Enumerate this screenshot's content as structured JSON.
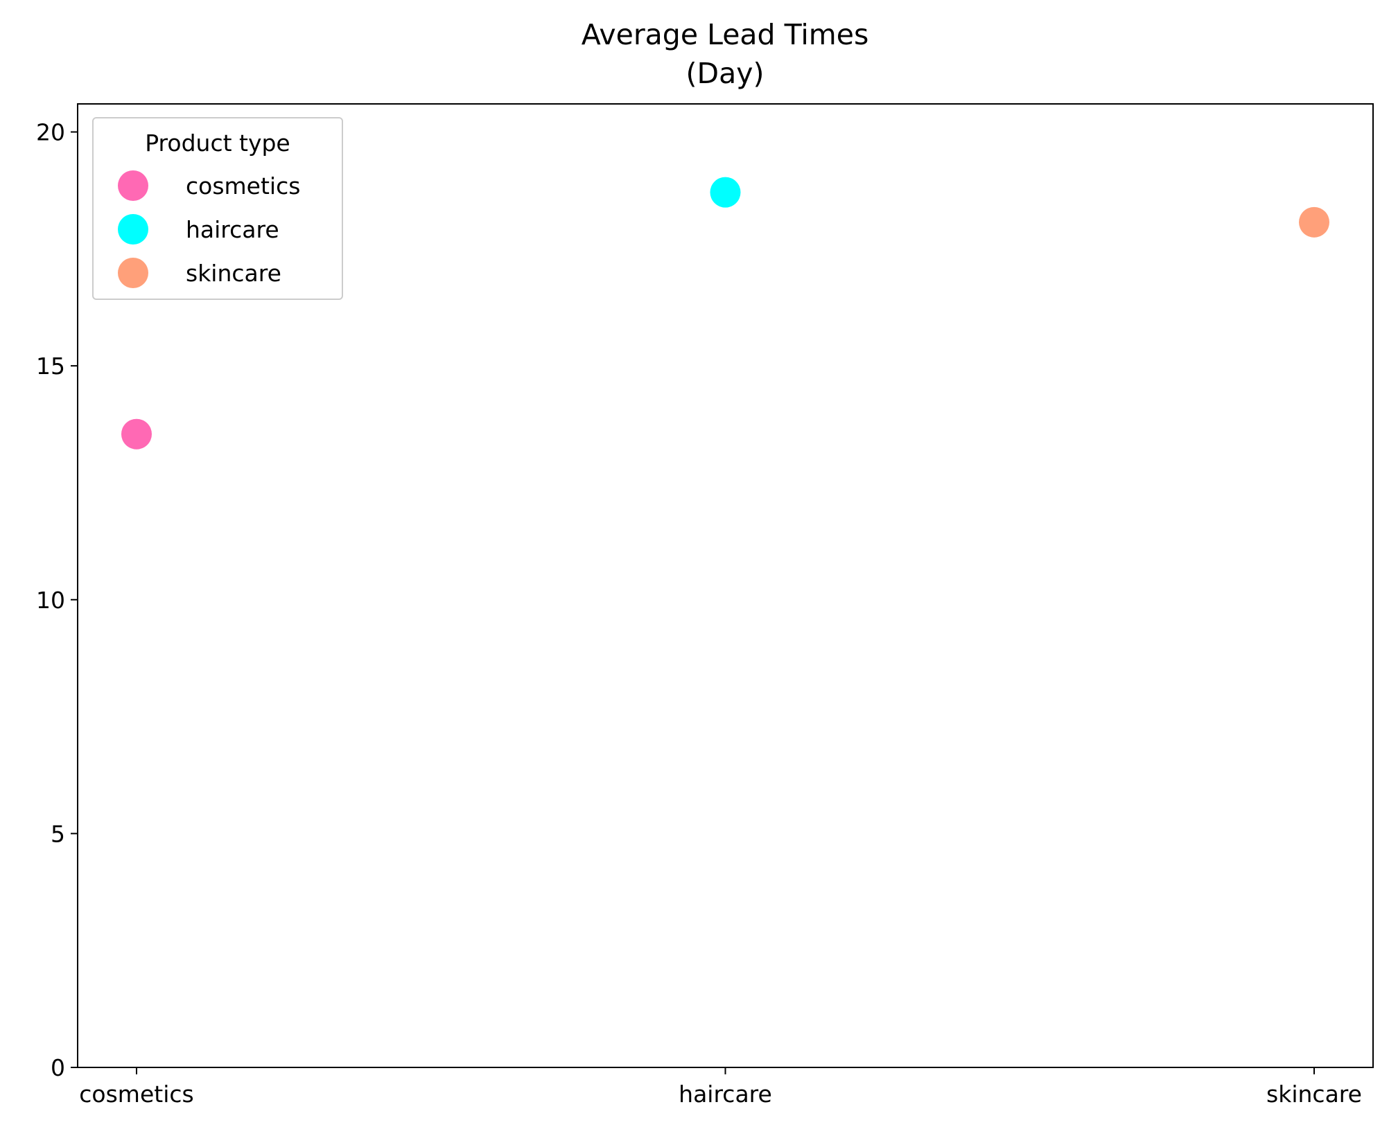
{
  "chart_data": {
    "type": "scatter",
    "title_lines": [
      "Average Lead Times",
      "(Day)"
    ],
    "xlabel": "",
    "ylabel": "",
    "categories": [
      "cosmetics",
      "haircare",
      "skincare"
    ],
    "ylim": [
      0,
      20.6
    ],
    "yticks": [
      0,
      5,
      10,
      15,
      20
    ],
    "grid": false,
    "legend": {
      "title": "Product type",
      "placement": "top-left",
      "entries": [
        "cosmetics",
        "haircare",
        "skincare"
      ]
    },
    "series": [
      {
        "name": "cosmetics",
        "category": "cosmetics",
        "value": 13.54,
        "color": "#ff69b4"
      },
      {
        "name": "haircare",
        "category": "haircare",
        "value": 18.71,
        "color": "#00ffff"
      },
      {
        "name": "skincare",
        "category": "skincare",
        "value": 18.07,
        "color": "#ffa07a"
      }
    ]
  }
}
